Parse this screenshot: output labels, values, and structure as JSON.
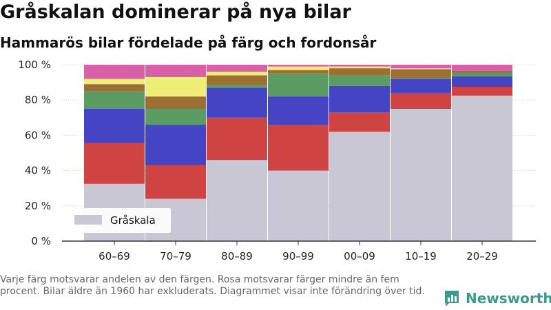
{
  "title": "Gråskalan dominerar på nya bilar",
  "subtitle": "Hammarös bilar fördelade på färg och fordonsår",
  "footnote": "Varje färg motsvarar andelen av den färgen. Rosa motsvarar färger mindre än fem procent. Bilar äldre än 1960 har exkluderats. Diagrammet visar inte förändring över tid.",
  "brand": {
    "name": "Newsworthy",
    "icon": "newsworthy-logo-icon",
    "color": "#3a9a8c"
  },
  "chart_data": {
    "type": "bar",
    "stacked": true,
    "categories": [
      "60–69",
      "70–79",
      "80–89",
      "90–99",
      "00–09",
      "10–19",
      "20–29"
    ],
    "yticks": [
      0,
      20,
      40,
      60,
      80,
      100
    ],
    "ytick_labels": [
      "0 %",
      "20 %",
      "40 %",
      "60 %",
      "80 %",
      "100 %"
    ],
    "ylim": [
      0,
      100
    ],
    "xlabel": "",
    "ylabel": "",
    "grid": true,
    "legend_position": "bottom-left",
    "series": [
      {
        "name": "Gråskala",
        "color": "#c8c7d3",
        "values": [
          32.5,
          24,
          46,
          40,
          62,
          75,
          82.5
        ]
      },
      {
        "color": "#cf4443",
        "values": [
          23,
          19,
          24,
          26,
          11,
          9,
          5
        ]
      },
      {
        "color": "#4444c4",
        "values": [
          19.5,
          23,
          17,
          16,
          15,
          8,
          6
        ]
      },
      {
        "color": "#5a9c63",
        "values": [
          10,
          9,
          1.5,
          13,
          6,
          0.5,
          2
        ]
      },
      {
        "color": "#9c7033",
        "values": [
          4,
          7,
          5.5,
          2,
          4,
          5,
          1
        ]
      },
      {
        "color": "#efef77",
        "values": [
          3,
          11,
          2,
          2,
          1,
          0.5,
          0
        ]
      },
      {
        "color": "#d860a8",
        "values": [
          8,
          7,
          4,
          1,
          1,
          2,
          3.5
        ]
      }
    ]
  }
}
